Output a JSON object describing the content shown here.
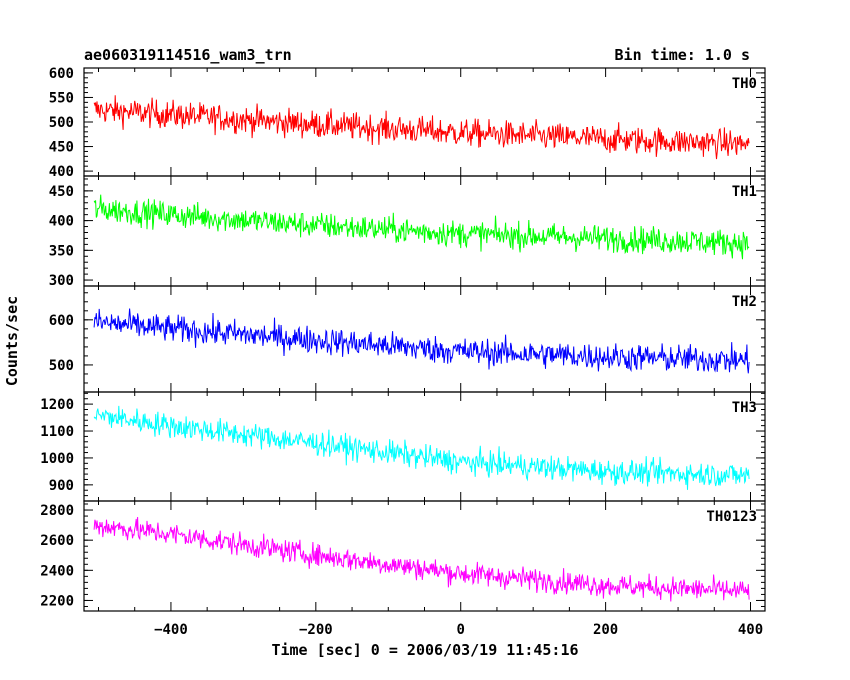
{
  "header": {
    "title": "ae060319114516_wam3_trn",
    "bin_time": "Bin time: 1.0 s"
  },
  "chart_data": {
    "type": "line",
    "title": "ae060319114516_wam3_trn",
    "subtitle": "Bin time: 1.0 s",
    "xlabel": "Time [sec] 0 = 2006/03/19 11:45:16",
    "ylabel": "Counts/sec",
    "xlim": [
      -520,
      420
    ],
    "x_ticks": [
      -400,
      -200,
      0,
      200,
      400
    ],
    "x_range": [
      -506,
      398
    ],
    "bin_time_s": 1.0,
    "panels": [
      {
        "name": "TH0",
        "color": "#ff0000",
        "ylim": [
          390,
          610
        ],
        "y_ticks": [
          400,
          450,
          500,
          550,
          600
        ],
        "trend": {
          "x": [
            -506,
            -400,
            -200,
            0,
            200,
            398
          ],
          "y": [
            525,
            515,
            495,
            478,
            465,
            455
          ]
        },
        "noise_amplitude": 28
      },
      {
        "name": "TH1",
        "color": "#00ff00",
        "ylim": [
          290,
          475
        ],
        "y_ticks": [
          300,
          350,
          400,
          450
        ],
        "trend": {
          "x": [
            -506,
            -400,
            -200,
            0,
            200,
            398
          ],
          "y": [
            420,
            410,
            392,
            378,
            370,
            362
          ]
        },
        "noise_amplitude": 22
      },
      {
        "name": "TH2",
        "color": "#0000ff",
        "ylim": [
          440,
          675
        ],
        "y_ticks": [
          500,
          600
        ],
        "trend": {
          "x": [
            -506,
            -400,
            -200,
            0,
            200,
            398
          ],
          "y": [
            595,
            580,
            555,
            530,
            518,
            510
          ]
        },
        "noise_amplitude": 30
      },
      {
        "name": "TH3",
        "color": "#00ffff",
        "ylim": [
          840,
          1245
        ],
        "y_ticks": [
          900,
          1000,
          1100,
          1200
        ],
        "trend": {
          "x": [
            -506,
            -400,
            -200,
            0,
            200,
            398
          ],
          "y": [
            1160,
            1120,
            1055,
            985,
            950,
            935
          ]
        },
        "noise_amplitude": 45
      },
      {
        "name": "TH0123",
        "color": "#ff00ff",
        "ylim": [
          2130,
          2860
        ],
        "y_ticks": [
          2200,
          2400,
          2600,
          2800
        ],
        "trend": {
          "x": [
            -506,
            -400,
            -200,
            0,
            200,
            398
          ],
          "y": [
            2700,
            2640,
            2500,
            2380,
            2300,
            2260
          ]
        },
        "noise_amplitude": 75
      }
    ]
  }
}
